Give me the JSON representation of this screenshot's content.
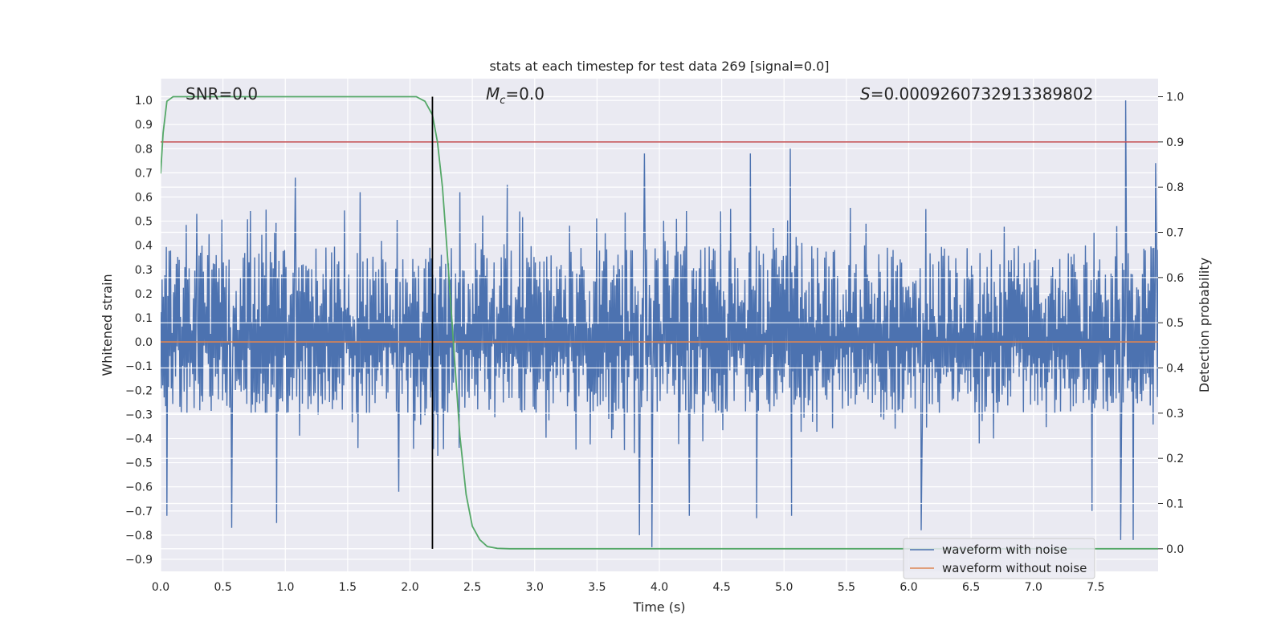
{
  "chart_data": {
    "type": "line",
    "title": "stats at each timestep for test data 269 [signal=0.0]",
    "xlabel": "Time (s)",
    "ylabel": "Whitened strain",
    "y2label": "Detection probability",
    "xlim": [
      0.0,
      8.0
    ],
    "ylim": [
      -0.95,
      1.09
    ],
    "y2lim": [
      -0.05,
      1.04
    ],
    "x_ticks": [
      0.0,
      0.5,
      1.0,
      1.5,
      2.0,
      2.5,
      3.0,
      3.5,
      4.0,
      4.5,
      5.0,
      5.5,
      6.0,
      6.5,
      7.0,
      7.5
    ],
    "x_tick_labels": [
      "0.0",
      "0.5",
      "1.0",
      "1.5",
      "2.0",
      "2.5",
      "3.0",
      "3.5",
      "4.0",
      "4.5",
      "5.0",
      "5.5",
      "6.0",
      "6.5",
      "7.0",
      "7.5"
    ],
    "y_ticks": [
      1.0,
      0.9,
      0.8,
      0.7,
      0.6,
      0.5,
      0.4,
      0.3,
      0.2,
      0.1,
      0.0,
      -0.1,
      -0.2,
      -0.3,
      -0.4,
      -0.5,
      -0.6,
      -0.7,
      -0.8,
      -0.9
    ],
    "y_tick_labels": [
      "1.0",
      "0.9",
      "0.8",
      "0.7",
      "0.6",
      "0.5",
      "0.4",
      "0.3",
      "0.2",
      "0.1",
      "0.0",
      "-0.1",
      "-0.2",
      "-0.3",
      "-0.4",
      "-0.5",
      "-0.6",
      "-0.7",
      "-0.8",
      "-0.9"
    ],
    "y2_ticks": [
      1.0,
      0.9,
      0.8,
      0.7,
      0.6,
      0.5,
      0.4,
      0.3,
      0.2,
      0.1,
      0.0
    ],
    "y2_tick_labels": [
      "1.0",
      "0.9",
      "0.8",
      "0.7",
      "0.6",
      "0.5",
      "0.4",
      "0.3",
      "0.2",
      "0.1",
      "0.0"
    ],
    "grid": true,
    "legend_position": "lower-right",
    "annotations": {
      "snr": "SNR=0.0",
      "mc_symbol": "M",
      "mc_sub": "c",
      "mc_value": "=0.0",
      "s_symbol": "S",
      "s_value": "=0.0009260732913389802"
    },
    "vertical_line_x": 2.18,
    "threshold_probability": 0.9,
    "series": [
      {
        "name": "waveform with noise",
        "color": "#4c72b0",
        "axis": "left",
        "noise_band": [
          -0.3,
          0.4
        ],
        "peaks": [
          {
            "x": 0.05,
            "y": -0.72
          },
          {
            "x": 0.29,
            "y": 0.53
          },
          {
            "x": 0.57,
            "y": -0.77
          },
          {
            "x": 0.93,
            "y": -0.75
          },
          {
            "x": 1.08,
            "y": 0.68
          },
          {
            "x": 1.6,
            "y": 0.62
          },
          {
            "x": 1.91,
            "y": -0.62
          },
          {
            "x": 2.4,
            "y": 0.62
          },
          {
            "x": 2.78,
            "y": 0.65
          },
          {
            "x": 3.84,
            "y": -0.8
          },
          {
            "x": 3.88,
            "y": 0.78
          },
          {
            "x": 3.94,
            "y": -0.85
          },
          {
            "x": 4.24,
            "y": -0.72
          },
          {
            "x": 4.73,
            "y": 0.78
          },
          {
            "x": 4.78,
            "y": -0.73
          },
          {
            "x": 5.05,
            "y": 0.8
          },
          {
            "x": 5.06,
            "y": -0.72
          },
          {
            "x": 6.1,
            "y": -0.78
          },
          {
            "x": 7.47,
            "y": -0.7
          },
          {
            "x": 7.7,
            "y": -0.82
          },
          {
            "x": 7.74,
            "y": 1.0
          },
          {
            "x": 7.8,
            "y": -0.82
          },
          {
            "x": 7.98,
            "y": 0.74
          }
        ]
      },
      {
        "name": "waveform without noise",
        "color": "#dd8452",
        "axis": "left",
        "x": [
          0.0,
          8.0
        ],
        "y": [
          0.0,
          0.0
        ]
      },
      {
        "color": "#55a868",
        "axis": "right",
        "x": [
          0.0,
          0.02,
          0.05,
          0.1,
          0.2,
          1.9,
          2.05,
          2.12,
          2.18,
          2.22,
          2.26,
          2.3,
          2.35,
          2.4,
          2.45,
          2.5,
          2.56,
          2.62,
          2.7,
          2.8,
          3.5,
          8.0
        ],
        "y": [
          0.83,
          0.92,
          0.99,
          1.0,
          1.0,
          1.0,
          1.0,
          0.99,
          0.96,
          0.9,
          0.8,
          0.65,
          0.45,
          0.25,
          0.12,
          0.05,
          0.02,
          0.005,
          0.001,
          0.0,
          0.0,
          0.0
        ]
      }
    ],
    "threshold_color": "#c44e52",
    "vline_color": "#000000"
  }
}
